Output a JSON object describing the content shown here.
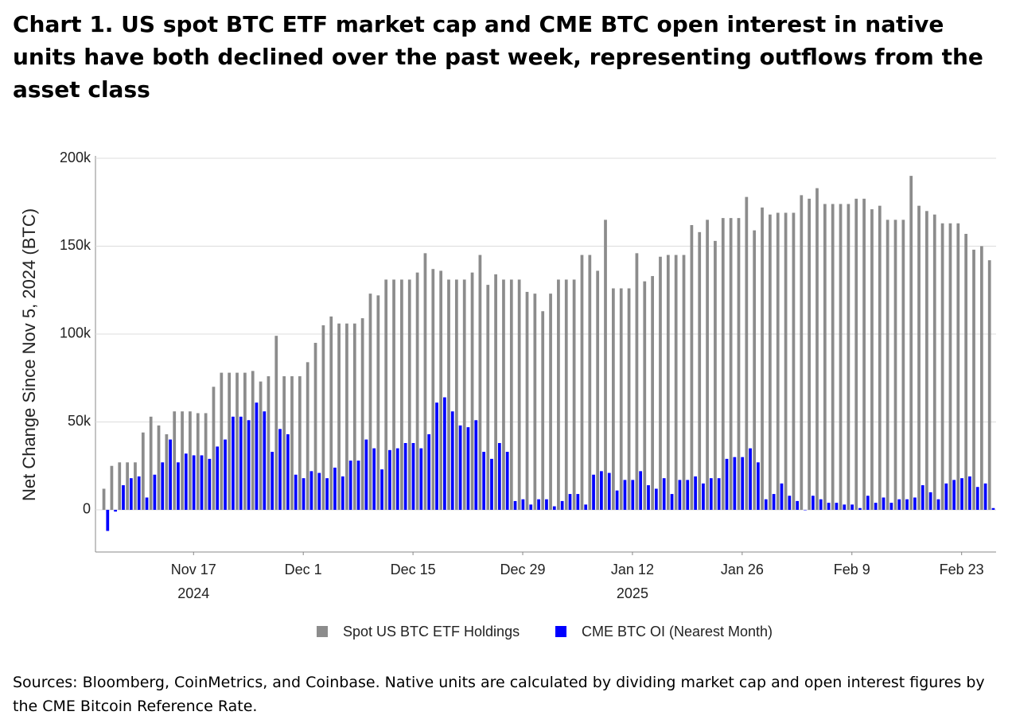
{
  "chart_data": {
    "type": "bar",
    "title": "Chart 1. US spot BTC ETF market cap and CME BTC open interest in native units have both declined over the past week, representing outflows from the asset class",
    "ylabel": "Net Change Since Nov 5, 2024 (BTC)",
    "source": "Sources: Bloomberg, CoinMetrics, and Coinbase. Native units are calculated by dividing market cap and open interest figures by the CME Bitcoin Reference Rate.",
    "x": [
      "2024-11-06",
      "2024-11-07",
      "2024-11-08",
      "2024-11-09",
      "2024-11-10",
      "2024-11-11",
      "2024-11-12",
      "2024-11-13",
      "2024-11-14",
      "2024-11-15",
      "2024-11-16",
      "2024-11-17",
      "2024-11-18",
      "2024-11-19",
      "2024-11-20",
      "2024-11-21",
      "2024-11-22",
      "2024-11-23",
      "2024-11-24",
      "2024-11-25",
      "2024-11-26",
      "2024-11-27",
      "2024-11-28",
      "2024-11-29",
      "2024-11-30",
      "2024-12-01",
      "2024-12-02",
      "2024-12-03",
      "2024-12-04",
      "2024-12-05",
      "2024-12-06",
      "2024-12-07",
      "2024-12-08",
      "2024-12-09",
      "2024-12-10",
      "2024-12-11",
      "2024-12-12",
      "2024-12-13",
      "2024-12-14",
      "2024-12-15",
      "2024-12-16",
      "2024-12-17",
      "2024-12-18",
      "2024-12-19",
      "2024-12-20",
      "2024-12-21",
      "2024-12-22",
      "2024-12-23",
      "2024-12-24",
      "2024-12-25",
      "2024-12-26",
      "2024-12-27",
      "2024-12-28",
      "2024-12-29",
      "2024-12-30",
      "2024-12-31",
      "2025-01-01",
      "2025-01-02",
      "2025-01-03",
      "2025-01-04",
      "2025-01-05",
      "2025-01-06",
      "2025-01-07",
      "2025-01-08",
      "2025-01-09",
      "2025-01-10",
      "2025-01-11",
      "2025-01-12",
      "2025-01-13",
      "2025-01-14",
      "2025-01-15",
      "2025-01-16",
      "2025-01-17",
      "2025-01-18",
      "2025-01-19",
      "2025-01-20",
      "2025-01-21",
      "2025-01-22",
      "2025-01-23",
      "2025-01-24",
      "2025-01-25",
      "2025-01-26",
      "2025-01-27",
      "2025-01-28",
      "2025-01-29",
      "2025-01-30",
      "2025-01-31",
      "2025-02-01",
      "2025-02-02",
      "2025-02-03",
      "2025-02-04",
      "2025-02-05",
      "2025-02-06",
      "2025-02-07",
      "2025-02-08",
      "2025-02-09",
      "2025-02-10",
      "2025-02-11",
      "2025-02-12",
      "2025-02-13",
      "2025-02-14",
      "2025-02-15",
      "2025-02-16",
      "2025-02-17",
      "2025-02-18",
      "2025-02-19",
      "2025-02-20",
      "2025-02-21",
      "2025-02-22",
      "2025-02-23",
      "2025-02-24",
      "2025-02-25",
      "2025-02-26",
      "2025-02-27"
    ],
    "series": [
      {
        "name": "Spot US BTC ETF Holdings",
        "color": "#8c8c8c",
        "values": [
          12000,
          25000,
          27000,
          27000,
          27000,
          44000,
          53000,
          48000,
          43000,
          56000,
          56000,
          56000,
          55000,
          55000,
          70000,
          78000,
          78000,
          78000,
          78000,
          79000,
          73000,
          76000,
          99000,
          76000,
          76000,
          76000,
          84000,
          95000,
          105000,
          110000,
          106000,
          106000,
          106000,
          109000,
          123000,
          122000,
          131000,
          131000,
          131000,
          131000,
          135000,
          146000,
          137000,
          136000,
          131000,
          131000,
          131000,
          135000,
          145000,
          128000,
          134000,
          131000,
          131000,
          131000,
          124000,
          123000,
          113000,
          123000,
          131000,
          131000,
          131000,
          145000,
          145000,
          136000,
          165000,
          126000,
          126000,
          126000,
          146000,
          130000,
          133000,
          144000,
          145000,
          145000,
          145000,
          162000,
          158000,
          165000,
          153000,
          166000,
          166000,
          166000,
          178000,
          159000,
          172000,
          168000,
          169000,
          169000,
          169000,
          179000,
          177000,
          183000,
          174000,
          174000,
          174000,
          174000,
          177000,
          177000,
          171000,
          173000,
          165000,
          165000,
          165000,
          190000,
          173000,
          170000,
          168000,
          163000,
          163000,
          163000,
          157000,
          148000,
          150000,
          142000
        ]
      },
      {
        "name": "CME BTC OI (Nearest Month)",
        "color": "#0000ff",
        "values": [
          -12000,
          -1000,
          14000,
          18000,
          19000,
          7000,
          20000,
          27000,
          40000,
          27000,
          32000,
          31000,
          31000,
          29000,
          36000,
          40000,
          53000,
          53000,
          51000,
          61000,
          56000,
          33000,
          46000,
          43000,
          20000,
          18000,
          22000,
          21000,
          18000,
          24000,
          19000,
          28000,
          28000,
          40000,
          35000,
          23000,
          34000,
          35000,
          38000,
          38000,
          35000,
          43000,
          61000,
          64000,
          56000,
          48000,
          47000,
          51000,
          33000,
          29000,
          38000,
          33000,
          5000,
          6000,
          3000,
          6000,
          6000,
          2000,
          5000,
          9000,
          9000,
          3000,
          20000,
          22000,
          21000,
          11000,
          17000,
          17000,
          22000,
          14000,
          12000,
          18000,
          9000,
          17000,
          17000,
          19000,
          15000,
          18000,
          18000,
          29000,
          30000,
          30000,
          35000,
          27000,
          6000,
          9000,
          15000,
          8000,
          5000,
          0,
          8000,
          6000,
          4000,
          4000,
          3000,
          3000,
          1000,
          8000,
          4000,
          7000,
          4000,
          6000,
          6000,
          7000,
          14000,
          10000,
          6000,
          15000,
          17000,
          18000,
          19000,
          13000,
          15000,
          1000
        ]
      }
    ],
    "ylim": [
      -24000,
      200000
    ],
    "yticks": [
      0,
      {
        "value": 50000,
        "label": "50k"
      },
      {
        "value": 100000,
        "label": "100k"
      },
      {
        "value": 150000,
        "label": "150k"
      },
      {
        "value": 200000,
        "label": "200k"
      }
    ],
    "xticks": [
      {
        "value": "2024-11-17",
        "label": "Nov 17"
      },
      {
        "value": "2024-12-01",
        "label": "Dec 1"
      },
      {
        "value": "2024-12-15",
        "label": "Dec 15"
      },
      {
        "value": "2024-12-29",
        "label": "Dec 29"
      },
      {
        "value": "2025-01-12",
        "label": "Jan 12"
      },
      {
        "value": "2025-01-26",
        "label": "Jan 26"
      },
      {
        "value": "2025-02-09",
        "label": "Feb 9"
      },
      {
        "value": "2025-02-23",
        "label": "Feb 23"
      }
    ],
    "x_year_labels": [
      {
        "value": "2024-11-17",
        "label": "2024"
      },
      {
        "value": "2025-01-12",
        "label": "2025"
      }
    ],
    "grid": true,
    "legend": "bottom"
  }
}
